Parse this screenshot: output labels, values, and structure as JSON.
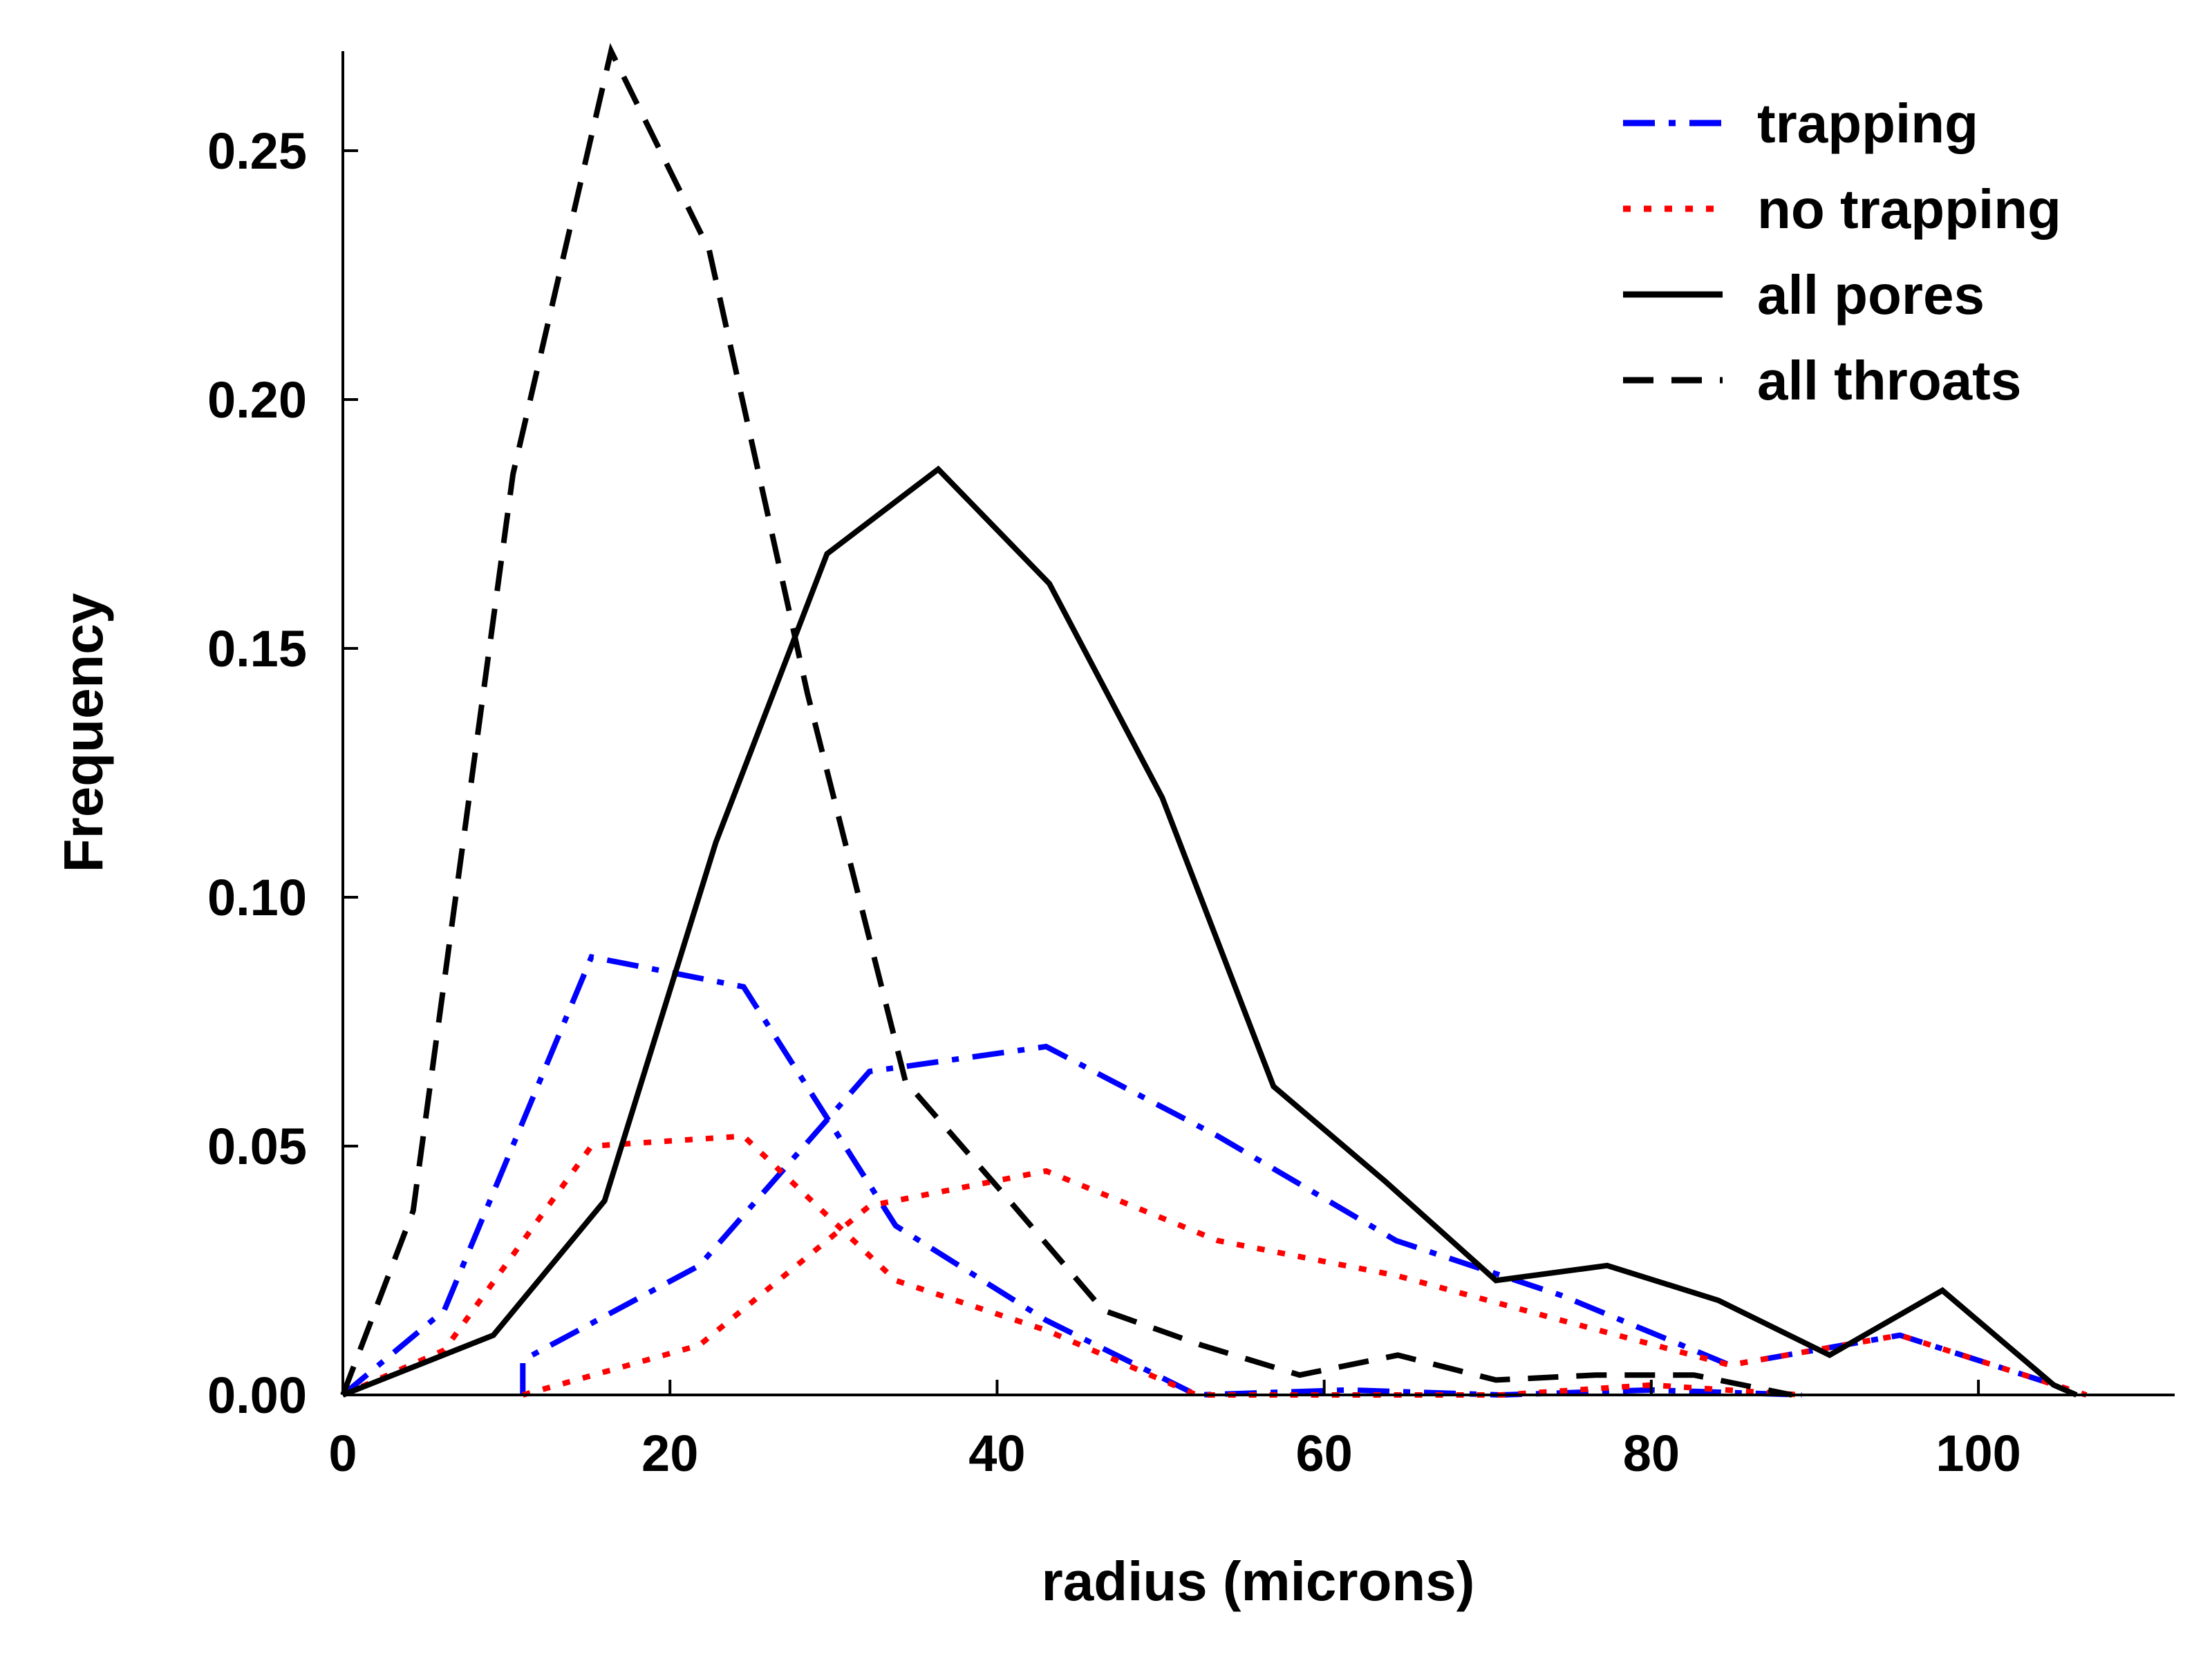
{
  "chart_data": {
    "type": "line",
    "title": "",
    "xlabel": "radius (microns)",
    "ylabel": "Frequency",
    "xlim": [
      0,
      112
    ],
    "ylim": [
      0,
      0.27
    ],
    "xticks": [
      0,
      20,
      40,
      60,
      80,
      100
    ],
    "xtick_labels": [
      "0",
      "20",
      "40",
      "60",
      "80",
      "100"
    ],
    "yticks": [
      0,
      0.05,
      0.1,
      0.15,
      0.2,
      0.25
    ],
    "ytick_labels": [
      "0.00",
      "0.05",
      "0.10",
      "0.15",
      "0.20",
      "0.25"
    ],
    "grid": false,
    "legend_position": "top-right",
    "series": [
      {
        "name": "trapping",
        "color": "#0000ff",
        "dash": "dashdot",
        "segments": [
          [
            [
              0,
              0
            ],
            [
              6.2,
              0.017
            ],
            [
              15.2,
              0.088
            ],
            [
              24.5,
              0.082
            ],
            [
              33.8,
              0.034
            ],
            [
              43,
              0.015
            ],
            [
              52.2,
              0.0
            ],
            [
              61.5,
              0.001
            ],
            [
              70.8,
              0.0
            ],
            [
              80,
              0.001
            ],
            [
              89.2,
              0.0
            ]
          ],
          [
            [
              11,
              0.0
            ],
            [
              11,
              0.007
            ],
            [
              21.8,
              0.026
            ],
            [
              32.2,
              0.065
            ],
            [
              43,
              0.07
            ],
            [
              53.5,
              0.052
            ],
            [
              64.4,
              0.031
            ],
            [
              74.5,
              0.02
            ],
            [
              84.8,
              0.006
            ],
            [
              95.2,
              0.012
            ],
            [
              106.6,
              0.0
            ]
          ]
        ]
      },
      {
        "name": "no trapping",
        "color": "#ff0000",
        "dash": "dotted",
        "segments": [
          [
            [
              0,
              0
            ],
            [
              6.2,
              0.009
            ],
            [
              15.2,
              0.05
            ],
            [
              24.5,
              0.052
            ],
            [
              33.8,
              0.023
            ],
            [
              43,
              0.013
            ],
            [
              52.2,
              0.0
            ],
            [
              61.5,
              0.0
            ],
            [
              70.8,
              0.0
            ],
            [
              80,
              0.002
            ],
            [
              89.2,
              0.0
            ]
          ],
          [
            [
              11,
              0.0
            ],
            [
              21.8,
              0.01
            ],
            [
              32.2,
              0.038
            ],
            [
              43,
              0.045
            ],
            [
              53.5,
              0.031
            ],
            [
              64.4,
              0.024
            ],
            [
              74.5,
              0.015
            ],
            [
              84.8,
              0.006
            ],
            [
              95.2,
              0.012
            ],
            [
              106.6,
              0.0
            ]
          ]
        ]
      },
      {
        "name": "all pores",
        "color": "#000000",
        "dash": "solid",
        "segments": [
          [
            [
              0,
              0
            ],
            [
              9.2,
              0.012
            ],
            [
              16,
              0.039
            ],
            [
              22.8,
              0.111
            ],
            [
              29.6,
              0.169
            ],
            [
              36.4,
              0.186
            ],
            [
              43.2,
              0.163
            ],
            [
              50.1,
              0.12
            ],
            [
              56.9,
              0.062
            ],
            [
              63.7,
              0.043
            ],
            [
              70.5,
              0.023
            ],
            [
              77.3,
              0.026
            ],
            [
              84.1,
              0.019
            ],
            [
              90.9,
              0.008
            ],
            [
              97.8,
              0.021
            ],
            [
              104.6,
              0.002
            ],
            [
              106,
              0.0
            ]
          ]
        ]
      },
      {
        "name": "all throats",
        "color": "#000000",
        "dash": "dashed",
        "segments": [
          [
            [
              0,
              0
            ],
            [
              4.3,
              0.037
            ],
            [
              10.4,
              0.185
            ],
            [
              16.4,
              0.27
            ],
            [
              22.4,
              0.23
            ],
            [
              28.4,
              0.141
            ],
            [
              34.4,
              0.063
            ],
            [
              40.5,
              0.04
            ],
            [
              46.5,
              0.017
            ],
            [
              52.5,
              0.01
            ],
            [
              58.5,
              0.004
            ],
            [
              64.5,
              0.008
            ],
            [
              70.5,
              0.003
            ],
            [
              76.6,
              0.004
            ],
            [
              82.6,
              0.004
            ],
            [
              88.6,
              0.0
            ]
          ]
        ]
      }
    ]
  }
}
